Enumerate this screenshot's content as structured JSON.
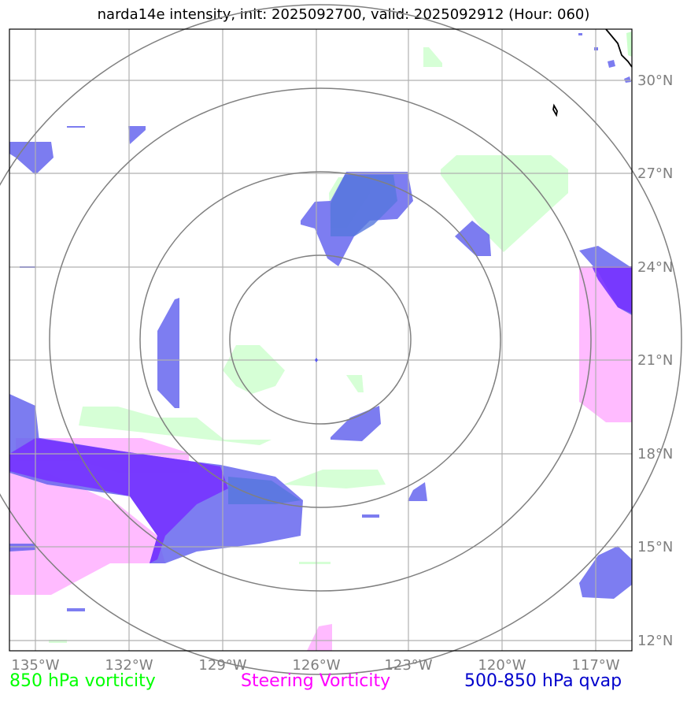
{
  "title": "narda14e intensity, init: 2025092700, valid: 2025092912 (Hour: 060)",
  "lon_labels": [
    "135°W",
    "132°W",
    "129°W",
    "126°W",
    "123°W",
    "120°W",
    "117°W"
  ],
  "lat_labels": [
    "30°N",
    "27°N",
    "24°N",
    "21°N",
    "18°N",
    "15°N",
    "12°N"
  ],
  "legend": {
    "left": {
      "text": "850 hPa vorticity",
      "color": "#00ff00"
    },
    "mid": {
      "text": "Steering Vorticity",
      "color": "#ff00ff"
    },
    "right": {
      "text": "500-850 hPa qvap",
      "color": "#0000cc"
    }
  },
  "colors": {
    "vort850": "#ccffcc",
    "steering": "#ffaaff",
    "qvap": "#5555ee",
    "qvap_dark": "#7733ff",
    "rings": "#808080",
    "grid": "#b0b0b0"
  },
  "map_extent": {
    "lon_min": -136,
    "lon_max": -116,
    "lat_min": 11.5,
    "lat_max": 31.5
  }
}
